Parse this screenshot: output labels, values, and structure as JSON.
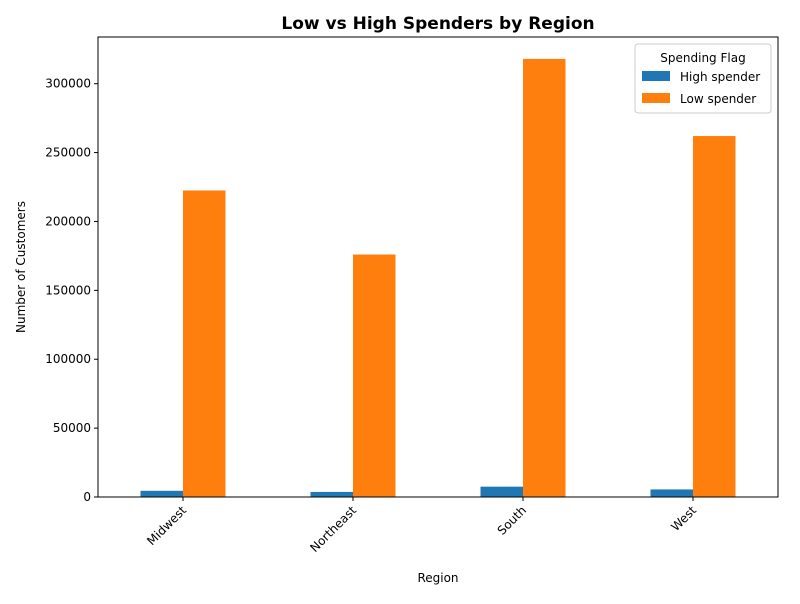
{
  "chart_data": {
    "type": "bar",
    "title": "Low vs High Spenders by Region",
    "xlabel": "Region",
    "ylabel": "Number of Customers",
    "categories": [
      "Midwest",
      "Northeast",
      "South",
      "West"
    ],
    "series": [
      {
        "name": "High spender",
        "values": [
          4500,
          3700,
          7500,
          5500
        ],
        "color": "#1f77b4"
      },
      {
        "name": "Low spender",
        "values": [
          222500,
          176000,
          318000,
          262000
        ],
        "color": "#ff7f0e"
      }
    ],
    "ylim": [
      0,
      333900
    ],
    "yticks": [
      0,
      50000,
      100000,
      150000,
      200000,
      250000,
      300000
    ],
    "ytick_labels": [
      "0",
      "50000",
      "100000",
      "150000",
      "200000",
      "250000",
      "300000"
    ],
    "grid": false,
    "legend": {
      "title": "Spending Flag",
      "position": "top-right"
    },
    "xtick_rotation": 45
  }
}
